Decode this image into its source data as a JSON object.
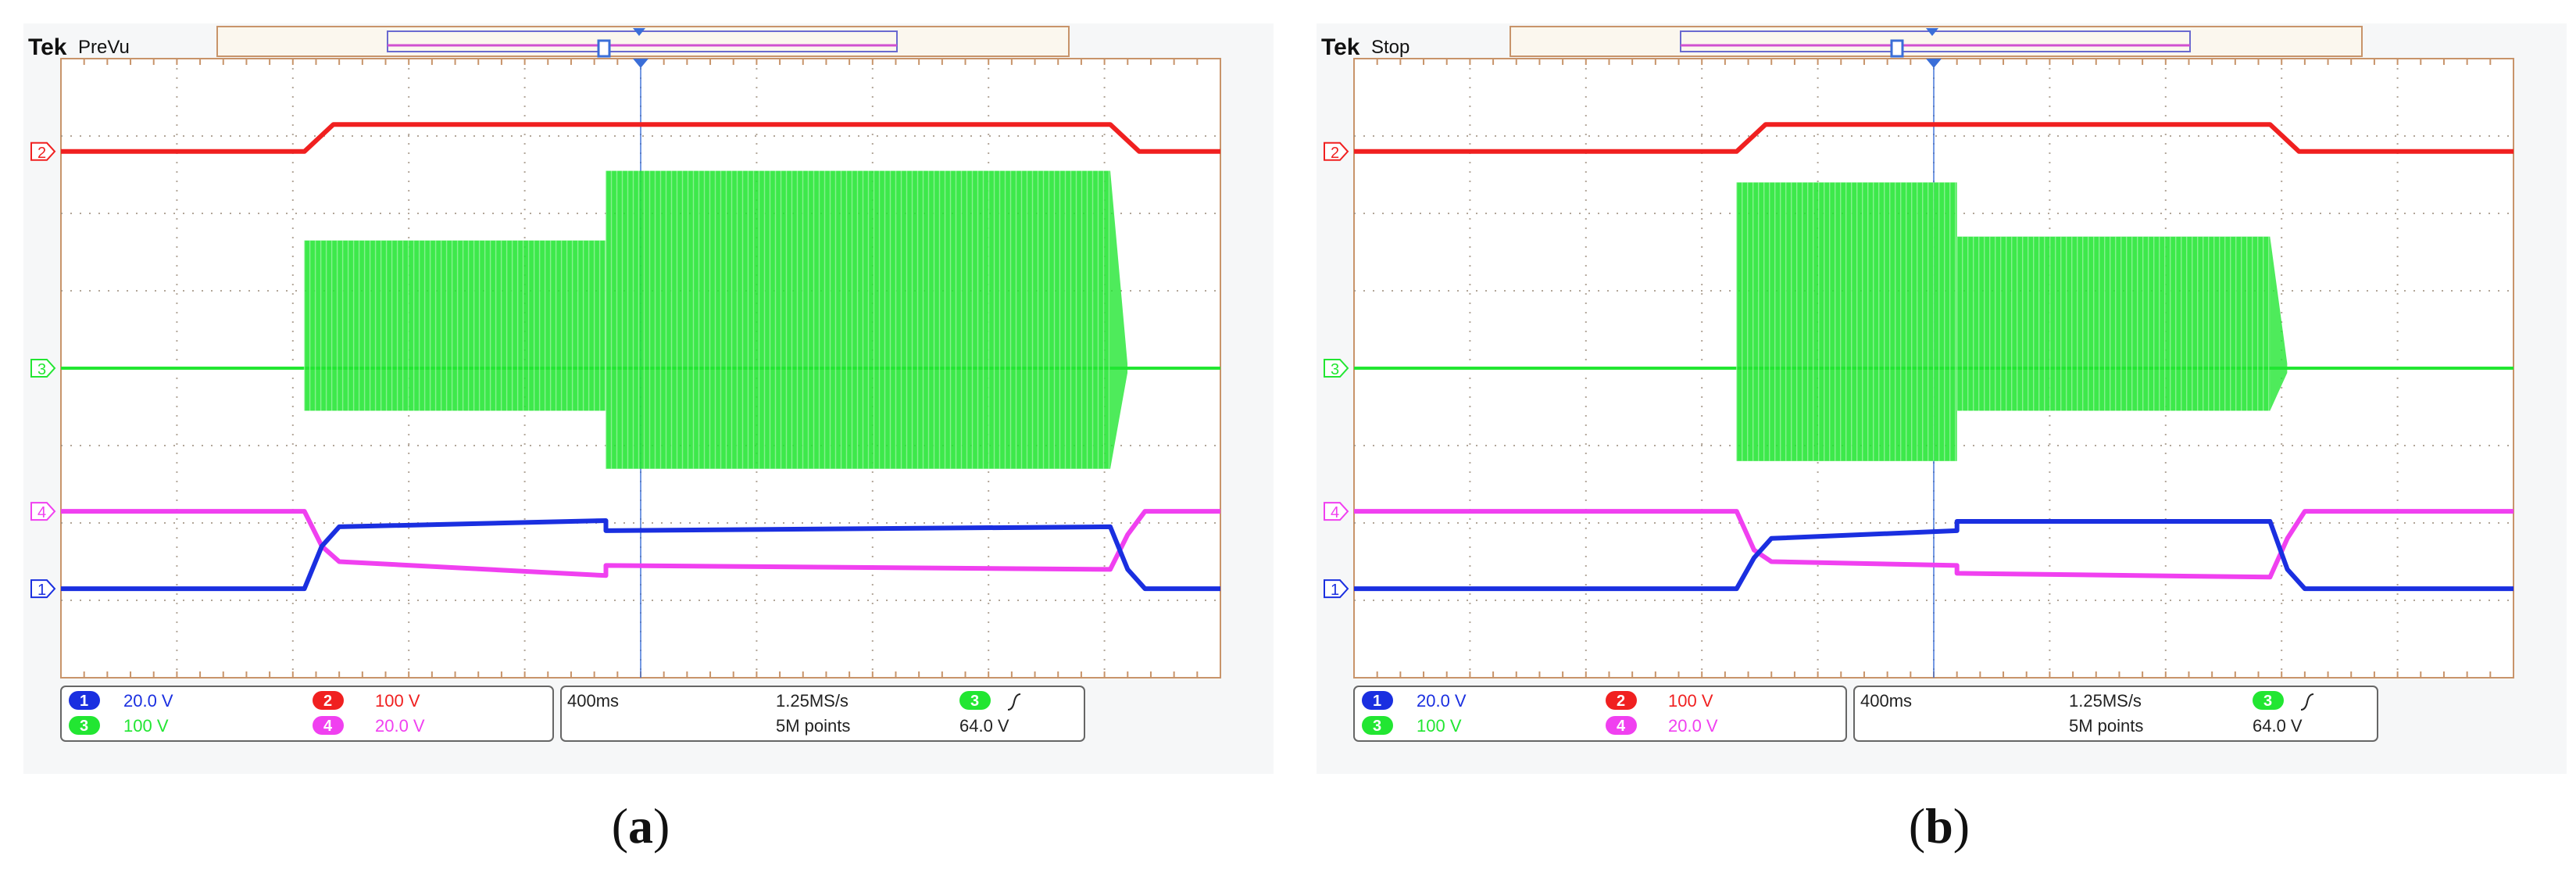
{
  "panels": [
    {
      "label_letter": "a",
      "brand": "Tek",
      "status": "PreVu",
      "readout": {
        "ch1": "20.0 V",
        "ch2": "100 V",
        "ch3": "100 V",
        "ch4": "20.0 V",
        "timebase": "400ms",
        "sample_rate": "1.25MS/s",
        "record_length": "5M points",
        "trigger_level": "64.0 V"
      }
    },
    {
      "label_letter": "b",
      "brand": "Tek",
      "status": "Stop",
      "readout": {
        "ch1": "20.0 V",
        "ch2": "100 V",
        "ch3": "100 V",
        "ch4": "20.0 V",
        "timebase": "400ms",
        "sample_rate": "1.25MS/s",
        "record_length": "5M points",
        "trigger_level": "64.0 V"
      }
    }
  ],
  "channel_markers": [
    "1",
    "2",
    "3",
    "4"
  ],
  "colors": {
    "ch1": "#1a2fe0",
    "ch2": "#f02020",
    "ch3": "#22e632",
    "ch4": "#f040f0",
    "grid_border": "#c8946a",
    "grid_dots": "#a09080",
    "trigger": "#3a6ed8"
  },
  "chart_data": [
    {
      "type": "line",
      "panel": "a",
      "x_unit": "div",
      "xlim": [
        0,
        10
      ],
      "ylim": [
        -4,
        4
      ],
      "grid": true,
      "series": [
        {
          "channel": 2,
          "x": [
            0,
            2.1,
            2.35,
            9.05,
            9.3,
            10
          ],
          "y": [
            2.8,
            2.8,
            3.15,
            3.15,
            2.8,
            2.8
          ]
        },
        {
          "channel": 3,
          "type": "burst",
          "center": 0,
          "segments": [
            {
              "x0": 2.1,
              "x1": 4.7,
              "upper": 1.65,
              "lower": -0.55
            },
            {
              "x0": 4.7,
              "x1": 9.05,
              "upper": 2.55,
              "lower": -1.3
            }
          ]
        },
        {
          "channel": 4,
          "x": [
            0,
            2.1,
            2.25,
            2.4,
            4.7,
            4.7,
            9.05,
            9.2,
            9.35,
            10
          ],
          "y": [
            -1.85,
            -1.85,
            -2.3,
            -2.5,
            -2.68,
            -2.55,
            -2.6,
            -2.15,
            -1.85,
            -1.85
          ]
        },
        {
          "channel": 1,
          "x": [
            0,
            2.1,
            2.25,
            2.4,
            4.7,
            4.7,
            9.05,
            9.2,
            9.35,
            10
          ],
          "y": [
            -2.85,
            -2.85,
            -2.3,
            -2.05,
            -1.97,
            -2.1,
            -2.05,
            -2.6,
            -2.85,
            -2.85
          ]
        }
      ]
    },
    {
      "type": "line",
      "panel": "b",
      "x_unit": "div",
      "xlim": [
        0,
        10
      ],
      "ylim": [
        -4,
        4
      ],
      "grid": true,
      "series": [
        {
          "channel": 2,
          "x": [
            0,
            3.3,
            3.55,
            7.9,
            8.15,
            10
          ],
          "y": [
            2.8,
            2.8,
            3.15,
            3.15,
            2.8,
            2.8
          ]
        },
        {
          "channel": 3,
          "type": "burst",
          "center": 0,
          "segments": [
            {
              "x0": 3.3,
              "x1": 5.2,
              "upper": 2.4,
              "lower": -1.2
            },
            {
              "x0": 5.2,
              "x1": 7.9,
              "upper": 1.7,
              "lower": -0.55
            }
          ]
        },
        {
          "channel": 4,
          "x": [
            0,
            3.3,
            3.45,
            3.6,
            5.2,
            5.2,
            7.9,
            8.05,
            8.2,
            10
          ],
          "y": [
            -1.85,
            -1.85,
            -2.35,
            -2.5,
            -2.55,
            -2.65,
            -2.7,
            -2.2,
            -1.85,
            -1.85
          ]
        },
        {
          "channel": 1,
          "x": [
            0,
            3.3,
            3.45,
            3.6,
            5.2,
            5.2,
            7.9,
            8.05,
            8.2,
            10
          ],
          "y": [
            -2.85,
            -2.85,
            -2.45,
            -2.2,
            -2.1,
            -1.98,
            -1.98,
            -2.6,
            -2.85,
            -2.85
          ]
        }
      ]
    }
  ]
}
